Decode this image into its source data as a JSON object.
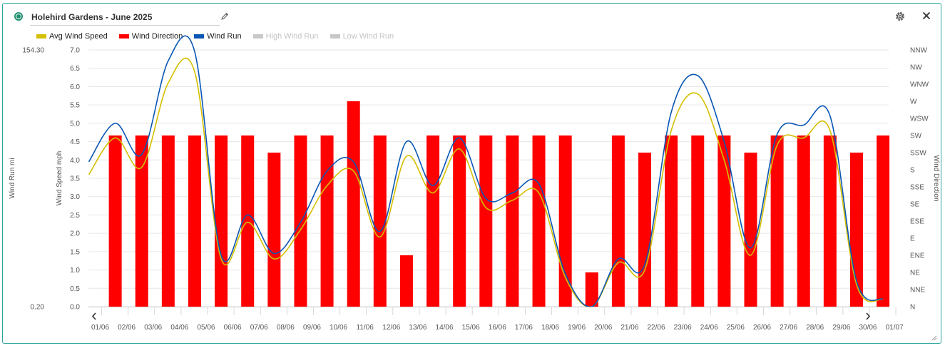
{
  "widget": {
    "title": "Holehird Gardens - June 2025",
    "status_color": "#1f8f6e"
  },
  "icons": {
    "edit": "pencil-icon",
    "settings": "gear-icon",
    "close": "close-icon",
    "resize": "resize-grip-icon",
    "prev": "chevron-left-icon",
    "next": "chevron-right-icon"
  },
  "chart_data": {
    "type": "bar",
    "legend": [
      {
        "name": "Avg Wind Speed",
        "color": "#d4bf00",
        "enabled": true
      },
      {
        "name": "Wind Direction",
        "color": "#ff0000",
        "enabled": true
      },
      {
        "name": "Wind Run",
        "color": "#0a56b4",
        "enabled": true
      },
      {
        "name": "High Wind Run",
        "color": "#c8c8c8",
        "enabled": false
      },
      {
        "name": "Low Wind Run",
        "color": "#c8c8c8",
        "enabled": false
      }
    ],
    "x_labels": [
      "01/06",
      "02/06",
      "03/06",
      "04/06",
      "05/06",
      "06/06",
      "07/06",
      "08/06",
      "09/06",
      "10/06",
      "11/06",
      "12/06",
      "13/06",
      "14/06",
      "15/06",
      "16/06",
      "17/06",
      "18/06",
      "19/06",
      "20/06",
      "21/06",
      "22/06",
      "23/06",
      "24/06",
      "25/06",
      "26/06",
      "27/06",
      "28/06",
      "29/06",
      "30/06",
      "01/07"
    ],
    "wind_run_axis": {
      "label": "Wind Run mi",
      "ticks": [
        "154.30",
        "0.20"
      ]
    },
    "wind_speed_axis": {
      "label": "Wind Speed mph",
      "min": 0,
      "max": 7,
      "ticks": [
        "0.0",
        "0.5",
        "1.0",
        "1.5",
        "2.0",
        "2.5",
        "3.0",
        "3.5",
        "4.0",
        "4.5",
        "5.0",
        "5.5",
        "6.0",
        "6.5",
        "7.0"
      ]
    },
    "direction_axis": {
      "label": "Wind Direction",
      "ticks": [
        "N",
        "NNE",
        "NE",
        "ENE",
        "E",
        "ESE",
        "SE",
        "SSE",
        "S",
        "SSW",
        "SW",
        "WSW",
        "W",
        "WNW",
        "NW",
        "NNW"
      ]
    },
    "grid": true,
    "legend_position": "top-left",
    "series": [
      {
        "name": "Wind Direction",
        "kind": "bar",
        "axis": "direction",
        "color": "#ff0000",
        "x": [
          "02/06",
          "03/06",
          "04/06",
          "05/06",
          "06/06",
          "07/06",
          "08/06",
          "09/06",
          "10/06",
          "11/06",
          "12/06",
          "13/06",
          "14/06",
          "15/06",
          "16/06",
          "17/06",
          "18/06",
          "19/06",
          "20/06",
          "21/06",
          "22/06",
          "23/06",
          "24/06",
          "25/06",
          "26/06",
          "27/06",
          "28/06",
          "29/06",
          "30/06",
          "01/07"
        ],
        "values": [
          "SW",
          "SW",
          "SW",
          "SW",
          "SW",
          "SW",
          "SSW",
          "SW",
          "SW",
          "W",
          "SW",
          "ENE",
          "SW",
          "SW",
          "SW",
          "SW",
          "SW",
          "SW",
          "NE",
          "SW",
          "SSW",
          "SW",
          "SW",
          "SW",
          "SSW",
          "SW",
          "SW",
          "SW",
          "SSW",
          "SW"
        ]
      },
      {
        "name": "Avg Wind Speed",
        "kind": "line",
        "axis": "speed",
        "color": "#d4bf00",
        "points": [
          [
            0,
            3.6
          ],
          [
            1,
            4.6
          ],
          [
            2,
            3.8
          ],
          [
            3,
            6.1
          ],
          [
            4,
            6.4
          ],
          [
            5,
            1.3
          ],
          [
            6,
            2.3
          ],
          [
            7,
            1.3
          ],
          [
            8,
            2.1
          ],
          [
            9,
            3.3
          ],
          [
            10,
            3.7
          ],
          [
            11,
            1.9
          ],
          [
            12,
            4.1
          ],
          [
            13,
            3.1
          ],
          [
            14,
            4.3
          ],
          [
            15,
            2.7
          ],
          [
            16,
            2.9
          ],
          [
            17,
            3.1
          ],
          [
            18,
            0.8
          ],
          [
            19,
            0.0
          ],
          [
            20,
            1.2
          ],
          [
            21,
            1.0
          ],
          [
            22,
            4.8
          ],
          [
            23,
            5.8
          ],
          [
            24,
            4.0
          ],
          [
            25,
            1.4
          ],
          [
            26,
            4.4
          ],
          [
            27,
            4.6
          ],
          [
            28,
            4.8
          ],
          [
            29,
            0.6
          ],
          [
            30,
            0.2
          ]
        ]
      },
      {
        "name": "Wind Run",
        "kind": "line",
        "axis": "speed",
        "color": "#0a56b4",
        "points": [
          [
            0,
            3.95
          ],
          [
            1,
            5.0
          ],
          [
            2,
            4.15
          ],
          [
            3,
            6.7
          ],
          [
            4,
            6.95
          ],
          [
            5,
            1.4
          ],
          [
            6,
            2.5
          ],
          [
            7,
            1.45
          ],
          [
            8,
            2.3
          ],
          [
            9,
            3.7
          ],
          [
            10,
            3.95
          ],
          [
            11,
            2.05
          ],
          [
            12,
            4.5
          ],
          [
            13,
            3.3
          ],
          [
            14,
            4.6
          ],
          [
            15,
            2.95
          ],
          [
            16,
            3.1
          ],
          [
            17,
            3.35
          ],
          [
            18,
            0.9
          ],
          [
            19,
            0.0
          ],
          [
            20,
            1.3
          ],
          [
            21,
            1.15
          ],
          [
            22,
            5.3
          ],
          [
            23,
            6.3
          ],
          [
            24,
            4.5
          ],
          [
            25,
            1.6
          ],
          [
            26,
            4.7
          ],
          [
            27,
            4.95
          ],
          [
            28,
            5.2
          ],
          [
            29,
            0.7
          ],
          [
            30,
            0.2
          ]
        ]
      }
    ]
  }
}
